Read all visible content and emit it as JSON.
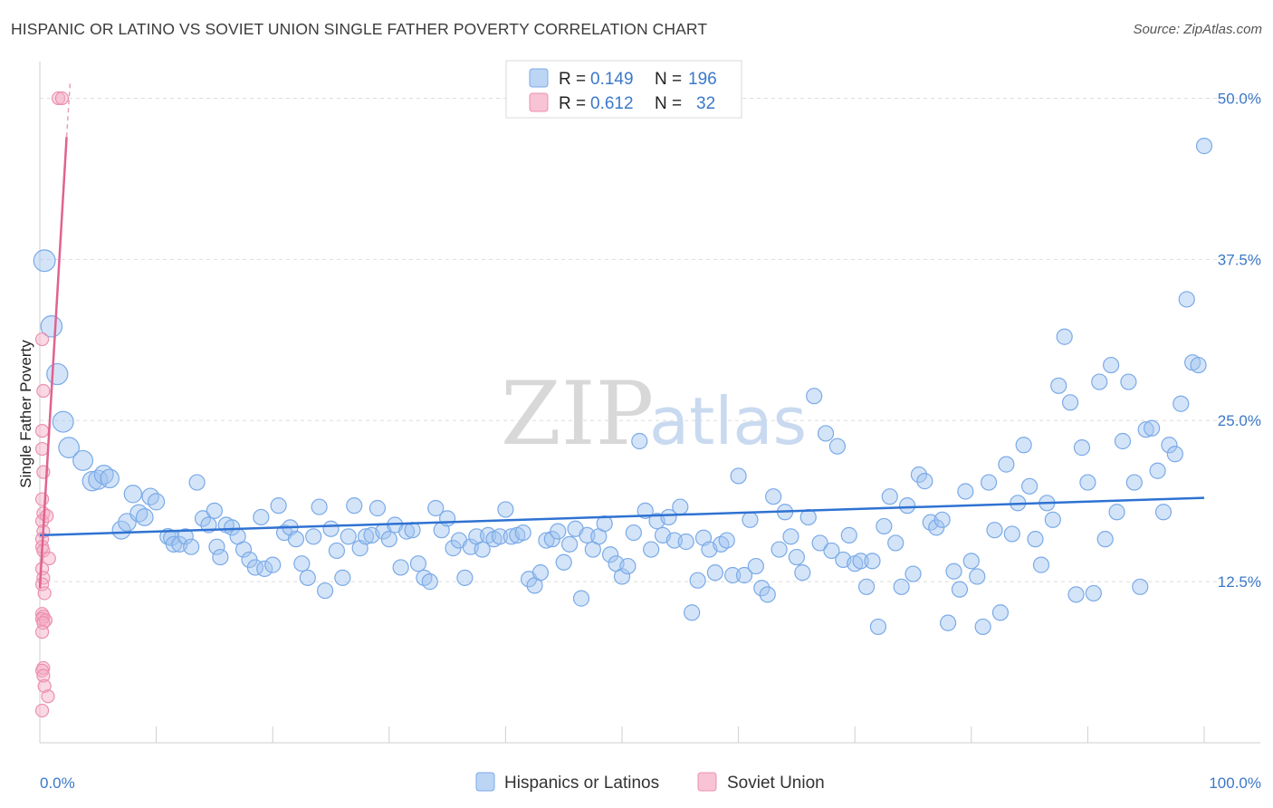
{
  "title": "HISPANIC OR LATINO VS SOVIET UNION SINGLE FATHER POVERTY CORRELATION CHART",
  "source": "Source: ZipAtlas.com",
  "watermark": {
    "part1": "ZIP",
    "part2": "atlas"
  },
  "chart_data": {
    "type": "scatter",
    "ylabel": "Single Father Poverty",
    "xlim": [
      0,
      100
    ],
    "ylim": [
      0,
      52
    ],
    "x_tick_labels": [
      {
        "value": 0,
        "label": "0.0%"
      },
      {
        "value": 100,
        "label": "100.0%"
      }
    ],
    "y_tick_labels": [
      {
        "value": 12.5,
        "label": "12.5%"
      },
      {
        "value": 25,
        "label": "25.0%"
      },
      {
        "value": 37.5,
        "label": "37.5%"
      },
      {
        "value": 50,
        "label": "50.0%"
      }
    ],
    "grid": "horizontal dashed",
    "legend": {
      "placement": "top-center",
      "rows": [
        {
          "r_label": "R =",
          "r_value": "0.149",
          "n_label": "N =",
          "n_value": "196"
        },
        {
          "r_label": "R =",
          "r_value": "0.612",
          "n_label": "N =",
          "n_value": "32"
        }
      ]
    },
    "bottom_legend": [
      "Hispanics or Latinos",
      "Soviet Union"
    ],
    "series": [
      {
        "name": "Hispanics or Latinos",
        "color": "#7aaae8",
        "fill": "rgba(160,195,240,0.45)",
        "trend": {
          "x0": 0,
          "y0": 16.1,
          "x1": 100,
          "y1": 19.0
        },
        "points": [
          [
            0.4,
            37.4
          ],
          [
            1,
            32.3
          ],
          [
            1.5,
            28.6
          ],
          [
            2,
            24.9
          ],
          [
            2.5,
            22.9
          ],
          [
            3.7,
            21.9
          ],
          [
            4.5,
            20.3
          ],
          [
            5,
            20.4
          ],
          [
            5.5,
            20.8
          ],
          [
            6,
            20.5
          ],
          [
            7,
            16.5
          ],
          [
            7.5,
            17.1
          ],
          [
            8,
            19.3
          ],
          [
            8.5,
            17.8
          ],
          [
            9,
            17.5
          ],
          [
            9.5,
            19.1
          ],
          [
            10,
            18.7
          ],
          [
            11,
            16.0
          ],
          [
            11.3,
            15.9
          ],
          [
            11.5,
            15.4
          ],
          [
            12,
            15.4
          ],
          [
            12.5,
            16.0
          ],
          [
            13,
            15.2
          ],
          [
            13.5,
            20.2
          ],
          [
            14,
            17.4
          ],
          [
            14.5,
            16.9
          ],
          [
            15,
            18.0
          ],
          [
            15.2,
            15.2
          ],
          [
            15.5,
            14.4
          ],
          [
            16,
            16.9
          ],
          [
            16.5,
            16.7
          ],
          [
            17,
            16.0
          ],
          [
            17.5,
            15.0
          ],
          [
            18,
            14.2
          ],
          [
            18.5,
            13.6
          ],
          [
            19,
            17.5
          ],
          [
            19.3,
            13.5
          ],
          [
            20,
            13.8
          ],
          [
            20.5,
            18.4
          ],
          [
            21,
            16.3
          ],
          [
            21.5,
            16.7
          ],
          [
            22,
            15.8
          ],
          [
            22.5,
            13.9
          ],
          [
            23,
            12.8
          ],
          [
            23.5,
            16.0
          ],
          [
            24,
            18.3
          ],
          [
            24.5,
            11.8
          ],
          [
            25,
            16.6
          ],
          [
            25.5,
            14.9
          ],
          [
            26,
            12.8
          ],
          [
            26.5,
            16.0
          ],
          [
            27,
            18.4
          ],
          [
            27.5,
            15.1
          ],
          [
            28,
            16.0
          ],
          [
            28.5,
            16.1
          ],
          [
            29,
            18.2
          ],
          [
            29.5,
            16.4
          ],
          [
            30,
            15.8
          ],
          [
            30.5,
            16.9
          ],
          [
            31,
            13.6
          ],
          [
            31.5,
            16.4
          ],
          [
            32,
            16.5
          ],
          [
            32.5,
            13.9
          ],
          [
            33,
            12.8
          ],
          [
            33.5,
            12.5
          ],
          [
            34,
            18.2
          ],
          [
            34.5,
            16.5
          ],
          [
            35,
            17.4
          ],
          [
            35.5,
            15.1
          ],
          [
            36,
            15.7
          ],
          [
            36.5,
            12.8
          ],
          [
            37,
            15.2
          ],
          [
            37.5,
            16.0
          ],
          [
            38,
            15.0
          ],
          [
            38.5,
            16.1
          ],
          [
            39,
            15.8
          ],
          [
            39.5,
            16.0
          ],
          [
            40,
            18.1
          ],
          [
            40.5,
            16.0
          ],
          [
            41,
            16.1
          ],
          [
            41.5,
            16.3
          ],
          [
            42,
            12.7
          ],
          [
            42.5,
            12.2
          ],
          [
            43,
            13.2
          ],
          [
            43.5,
            15.7
          ],
          [
            44,
            15.8
          ],
          [
            44.5,
            16.4
          ],
          [
            45,
            14.0
          ],
          [
            45.5,
            15.4
          ],
          [
            46,
            16.6
          ],
          [
            46.5,
            11.2
          ],
          [
            47,
            16.1
          ],
          [
            47.5,
            15.0
          ],
          [
            48,
            16.0
          ],
          [
            48.5,
            17.0
          ],
          [
            49,
            14.6
          ],
          [
            49.5,
            13.9
          ],
          [
            50,
            12.9
          ],
          [
            50.5,
            13.7
          ],
          [
            51,
            16.3
          ],
          [
            51.5,
            23.4
          ],
          [
            52,
            18.0
          ],
          [
            52.5,
            15.0
          ],
          [
            53,
            17.2
          ],
          [
            53.5,
            16.1
          ],
          [
            54,
            17.5
          ],
          [
            54.5,
            15.7
          ],
          [
            55,
            18.3
          ],
          [
            55.5,
            15.6
          ],
          [
            56,
            10.1
          ],
          [
            56.5,
            12.6
          ],
          [
            57,
            15.9
          ],
          [
            57.5,
            15.0
          ],
          [
            58,
            13.2
          ],
          [
            58.5,
            15.4
          ],
          [
            59,
            15.7
          ],
          [
            59.5,
            13.0
          ],
          [
            60,
            20.7
          ],
          [
            60.5,
            13.0
          ],
          [
            61,
            17.3
          ],
          [
            61.5,
            13.7
          ],
          [
            62,
            12.0
          ],
          [
            62.5,
            11.5
          ],
          [
            63,
            19.1
          ],
          [
            63.5,
            15.0
          ],
          [
            64,
            17.9
          ],
          [
            64.5,
            16.0
          ],
          [
            65,
            14.4
          ],
          [
            65.5,
            13.2
          ],
          [
            66,
            17.5
          ],
          [
            66.5,
            26.9
          ],
          [
            67,
            15.5
          ],
          [
            67.5,
            24.0
          ],
          [
            68,
            14.9
          ],
          [
            68.5,
            23.0
          ],
          [
            69,
            14.2
          ],
          [
            69.5,
            16.1
          ],
          [
            70,
            13.9
          ],
          [
            70.5,
            14.1
          ],
          [
            71,
            12.1
          ],
          [
            71.5,
            14.1
          ],
          [
            72,
            9.0
          ],
          [
            72.5,
            16.8
          ],
          [
            73,
            19.1
          ],
          [
            73.5,
            15.5
          ],
          [
            74,
            12.1
          ],
          [
            74.5,
            18.4
          ],
          [
            75,
            13.1
          ],
          [
            75.5,
            20.8
          ],
          [
            76,
            20.3
          ],
          [
            76.5,
            17.1
          ],
          [
            77,
            16.7
          ],
          [
            77.5,
            17.3
          ],
          [
            78,
            9.3
          ],
          [
            78.5,
            13.3
          ],
          [
            79,
            11.9
          ],
          [
            79.5,
            19.5
          ],
          [
            80,
            14.1
          ],
          [
            80.5,
            12.9
          ],
          [
            81,
            9.0
          ],
          [
            81.5,
            20.2
          ],
          [
            82,
            16.5
          ],
          [
            82.5,
            10.1
          ],
          [
            83,
            21.6
          ],
          [
            83.5,
            16.2
          ],
          [
            84,
            18.6
          ],
          [
            84.5,
            23.1
          ],
          [
            85,
            19.9
          ],
          [
            85.5,
            15.8
          ],
          [
            86,
            13.8
          ],
          [
            86.5,
            18.6
          ],
          [
            87,
            17.3
          ],
          [
            87.5,
            27.7
          ],
          [
            88,
            31.5
          ],
          [
            88.5,
            26.4
          ],
          [
            89,
            11.5
          ],
          [
            89.5,
            22.9
          ],
          [
            90,
            20.2
          ],
          [
            90.5,
            11.6
          ],
          [
            91,
            28.0
          ],
          [
            91.5,
            15.8
          ],
          [
            92,
            29.3
          ],
          [
            92.5,
            17.9
          ],
          [
            93,
            23.4
          ],
          [
            93.5,
            28.0
          ],
          [
            94,
            20.2
          ],
          [
            94.5,
            12.1
          ],
          [
            95,
            24.3
          ],
          [
            95.5,
            24.4
          ],
          [
            96,
            21.1
          ],
          [
            96.5,
            17.9
          ],
          [
            97,
            23.1
          ],
          [
            97.5,
            22.4
          ],
          [
            98,
            26.3
          ],
          [
            98.5,
            34.4
          ],
          [
            99,
            29.5
          ],
          [
            99.5,
            29.3
          ],
          [
            100,
            46.3
          ]
        ]
      },
      {
        "name": "Soviet Union",
        "color": "#ec8fb0",
        "fill": "rgba(245,170,195,0.45)",
        "trend": {
          "x0": 0,
          "y0": 12.0,
          "x1": 2.3,
          "y1": 47.0
        },
        "trend_dashed_to": {
          "x": 2.6,
          "y": 51.2
        },
        "points": [
          [
            1.6,
            50.0
          ],
          [
            1.9,
            50.0
          ],
          [
            0.2,
            31.3
          ],
          [
            0.3,
            27.3
          ],
          [
            0.2,
            24.2
          ],
          [
            0.2,
            22.8
          ],
          [
            0.3,
            21.0
          ],
          [
            0.2,
            18.9
          ],
          [
            0.3,
            17.8
          ],
          [
            0.2,
            17.2
          ],
          [
            0.6,
            17.6
          ],
          [
            0.3,
            16.4
          ],
          [
            0.2,
            15.8
          ],
          [
            0.2,
            15.2
          ],
          [
            0.3,
            14.9
          ],
          [
            0.8,
            14.3
          ],
          [
            0.2,
            13.5
          ],
          [
            0.3,
            12.8
          ],
          [
            0.2,
            12.3
          ],
          [
            0.4,
            11.6
          ],
          [
            0.2,
            10.0
          ],
          [
            0.3,
            9.8
          ],
          [
            0.2,
            9.6
          ],
          [
            0.5,
            9.5
          ],
          [
            0.3,
            9.3
          ],
          [
            0.2,
            8.6
          ],
          [
            0.3,
            5.8
          ],
          [
            0.2,
            5.6
          ],
          [
            0.3,
            5.2
          ],
          [
            0.4,
            4.4
          ],
          [
            0.7,
            3.6
          ],
          [
            0.2,
            2.5
          ]
        ]
      }
    ]
  }
}
